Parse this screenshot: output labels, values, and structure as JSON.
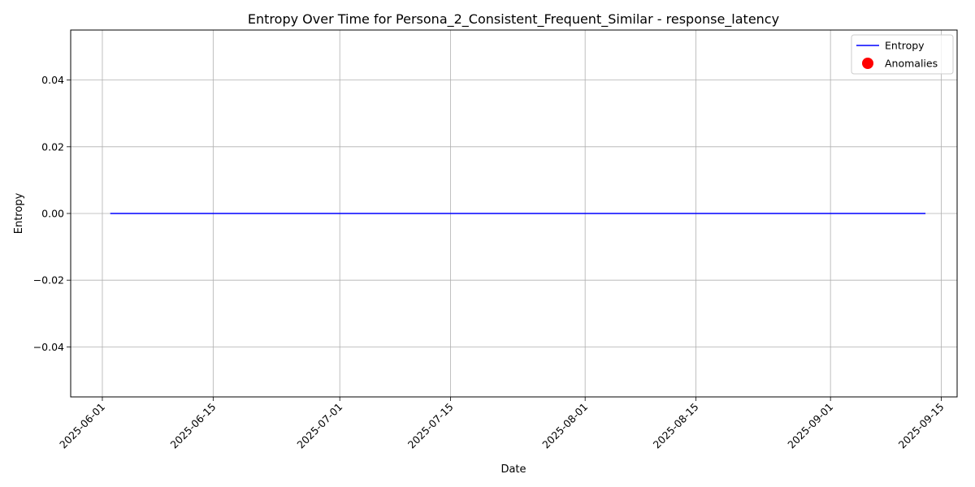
{
  "chart_data": {
    "type": "line",
    "title": "Entropy Over Time for Persona_2_Consistent_Frequent_Similar - response_latency",
    "xlabel": "Date",
    "ylabel": "Entropy",
    "xlim": [
      "2025-05-28",
      "2025-09-17"
    ],
    "ylim": [
      -0.055,
      0.055
    ],
    "x_ticks": [
      "2025-06-01",
      "2025-06-15",
      "2025-07-01",
      "2025-07-15",
      "2025-08-01",
      "2025-08-15",
      "2025-09-01",
      "2025-09-15"
    ],
    "y_ticks": [
      {
        "value": -0.04,
        "label": "−0.04"
      },
      {
        "value": -0.02,
        "label": "−0.02"
      },
      {
        "value": 0.0,
        "label": "0.00"
      },
      {
        "value": 0.02,
        "label": "0.02"
      },
      {
        "value": 0.04,
        "label": "0.04"
      }
    ],
    "grid": true,
    "legend_position": "top-right",
    "series": [
      {
        "name": "Entropy",
        "kind": "line",
        "color": "#0000ff",
        "points": [
          {
            "x": "2025-06-02",
            "y": 0.0
          },
          {
            "x": "2025-09-13",
            "y": 0.0
          }
        ]
      },
      {
        "name": "Anomalies",
        "kind": "scatter",
        "color": "#ff0000",
        "points": []
      }
    ]
  }
}
